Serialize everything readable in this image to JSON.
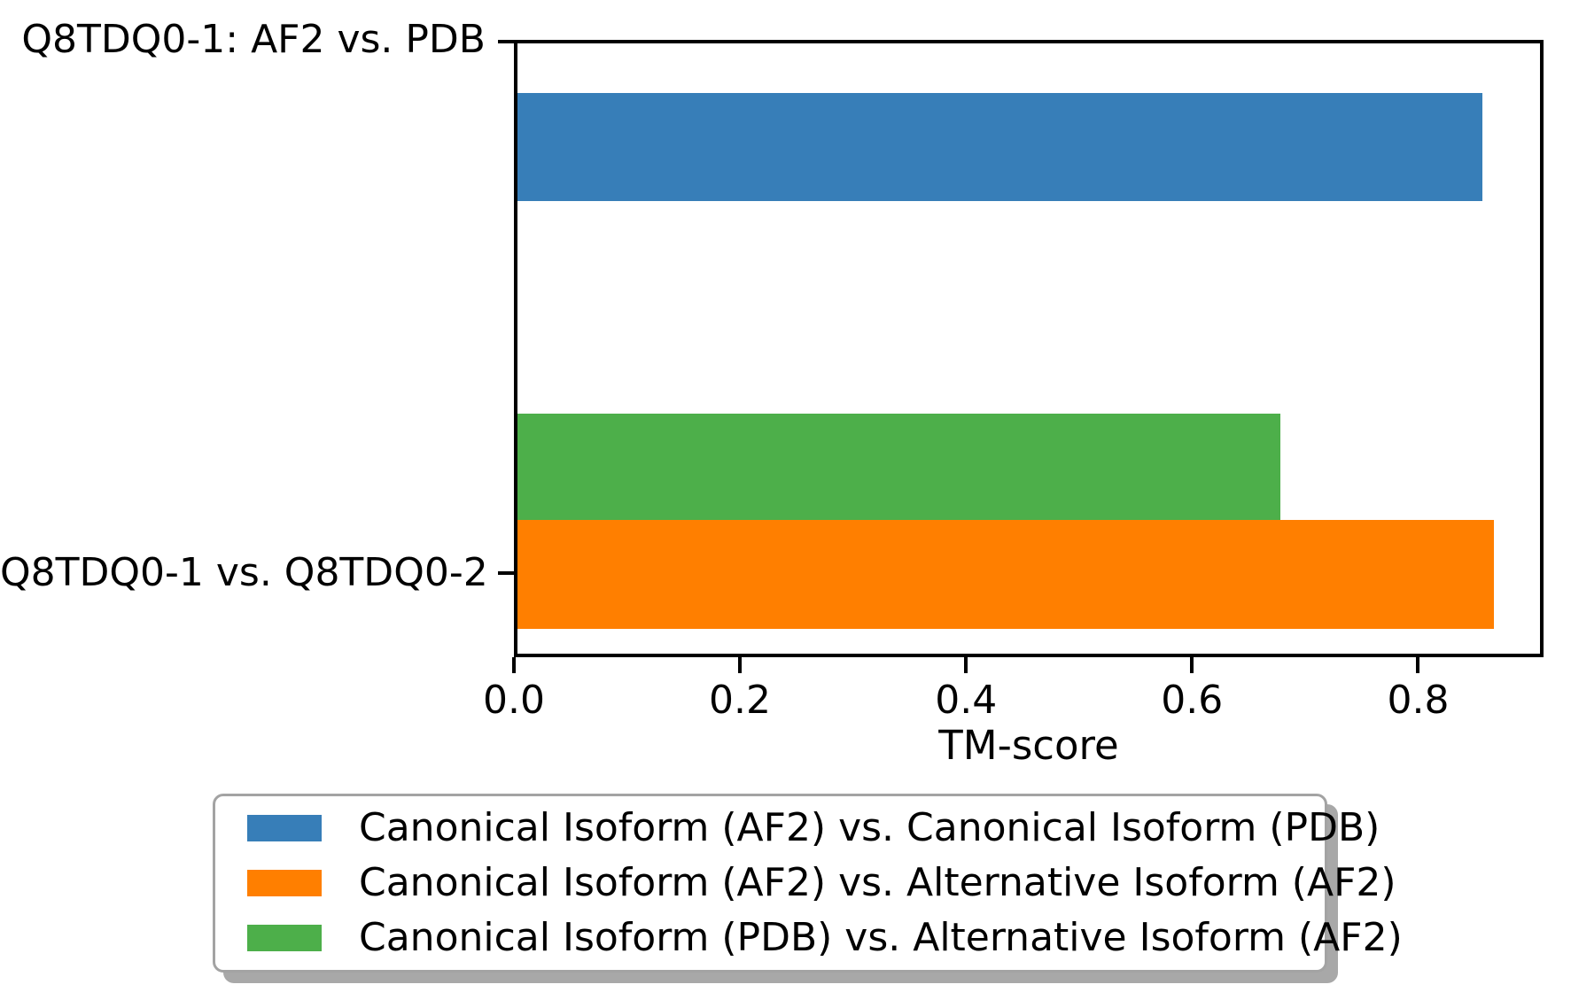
{
  "chart_data": {
    "type": "bar",
    "orientation": "horizontal",
    "xlabel": "TM-score",
    "categories": [
      "Q8TDQ0-1: AF2 vs. PDB",
      "Q8TDQ0-1 vs. Q8TDQ0-2"
    ],
    "series": [
      {
        "name": "Canonical Isoform (AF2) vs. Canonical Isoform (PDB)",
        "color": "#377eb8",
        "values": [
          0.86,
          null
        ]
      },
      {
        "name": "Canonical Isoform (AF2) vs. Alternative Isoform (AF2)",
        "color": "#ff7f00",
        "values": [
          null,
          0.87
        ]
      },
      {
        "name": "Canonical Isoform (PDB) vs. Alternative Isoform (AF2)",
        "color": "#4daf4a",
        "values": [
          null,
          0.68
        ]
      }
    ],
    "xticks": [
      "0.0",
      "0.2",
      "0.4",
      "0.6",
      "0.8"
    ],
    "xlim": [
      0,
      0.911
    ],
    "grid": false,
    "axis_color": "#000000",
    "background_color": "#ffffff",
    "legend_position": "below-chart",
    "legend_style": "rounded-box-with-shadow"
  }
}
